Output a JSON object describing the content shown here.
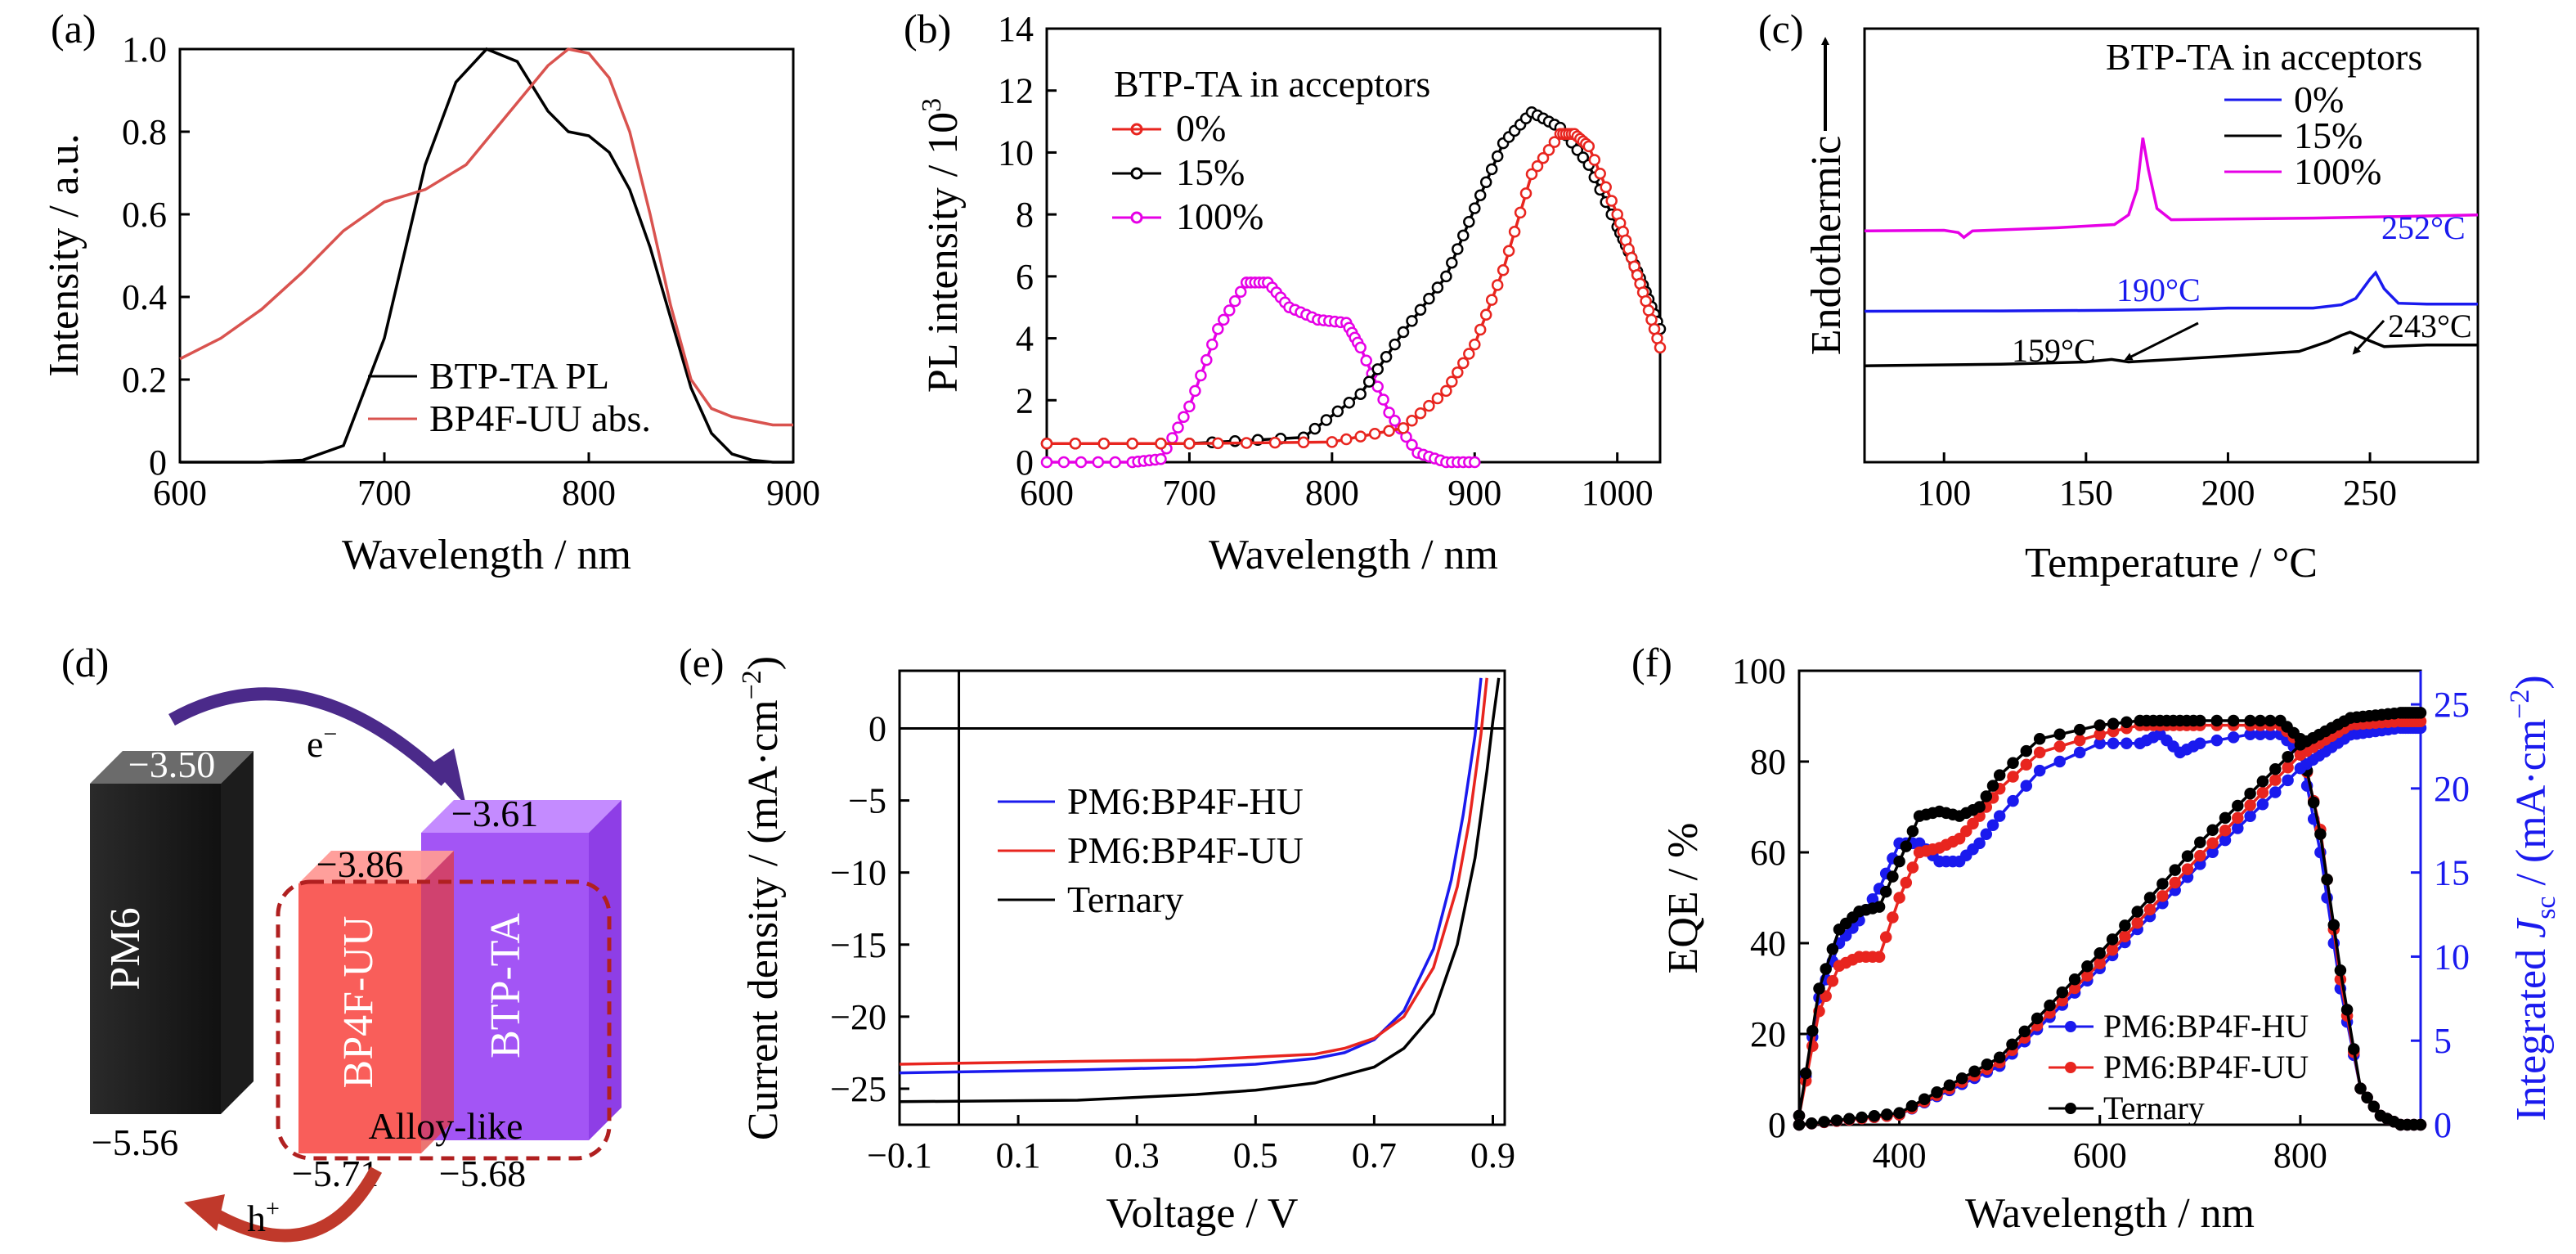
{
  "colors": {
    "black": "#000000",
    "red": "#e8251f",
    "magenta": "#e600e6",
    "blue": "#1a1aee",
    "lightred": "#d9534f",
    "blueaxis": "#1a1aee"
  },
  "panels": {
    "a": {
      "label": "(a)",
      "xlabel": "Wavelength / nm",
      "ylabel": "Intensity / a.u."
    },
    "b": {
      "label": "(b)",
      "xlabel": "Wavelength / nm",
      "ylabel": "PL intensity / 10",
      "ylabel_sup": "3",
      "legend_title": "BTP-TA in acceptors"
    },
    "c": {
      "label": "(c)",
      "xlabel": "Temperature / °C",
      "ylabel": "Endothermic",
      "legend_title": "BTP-TA in acceptors",
      "annotations": [
        "252°C",
        "190°C",
        "243°C",
        "159°C"
      ]
    },
    "d": {
      "label": "(d)",
      "pm6": "PM6",
      "bp4f": "BP4F-UU",
      "btp": "BTP-TA",
      "alloy": "Alloy-like",
      "electron": "e",
      "electron_sup": "−",
      "hole": "h",
      "hole_sup": "+",
      "levels": {
        "pm6_lumo": "−3.50",
        "pm6_homo": "−5.56",
        "bp4f_lumo": "−3.86",
        "bp4f_homo": "−5.71",
        "btp_lumo": "−3.61",
        "btp_homo": "−5.68"
      }
    },
    "e": {
      "label": "(e)",
      "xlabel": "Voltage / V",
      "ylabel": "Current density / (mA·cm",
      "ylabel_sup": "−2",
      "ylabel_end": ")"
    },
    "f": {
      "label": "(f)",
      "xlabel": "Wavelength / nm",
      "ylabel": "EQE / %",
      "ylabel2_pre": "Integrated ",
      "ylabel2_j": "J",
      "ylabel2_sub": "sc",
      "ylabel2_post": " / (mA·cm",
      "ylabel2_sup": "−2",
      "ylabel2_end": ")"
    }
  },
  "chart_data": [
    {
      "id": "a",
      "type": "line",
      "xlim": [
        600,
        900
      ],
      "ylim": [
        0,
        1.0
      ],
      "xticks": [
        "600",
        "700",
        "800",
        "900"
      ],
      "yticks": [
        "0",
        "0.2",
        "0.4",
        "0.6",
        "0.8",
        "1.0"
      ],
      "series": [
        {
          "name": "BTP-TA PL",
          "color": "#000000",
          "x": [
            600,
            640,
            660,
            680,
            700,
            720,
            735,
            750,
            765,
            780,
            790,
            800,
            810,
            820,
            830,
            840,
            850,
            860,
            870,
            880,
            890,
            900
          ],
          "y": [
            0,
            0,
            0.005,
            0.04,
            0.3,
            0.72,
            0.92,
            1.0,
            0.97,
            0.85,
            0.8,
            0.79,
            0.75,
            0.66,
            0.52,
            0.35,
            0.18,
            0.07,
            0.02,
            0.005,
            0,
            0
          ]
        },
        {
          "name": "BP4F-UU abs.",
          "color": "#d9534f",
          "x": [
            600,
            620,
            640,
            660,
            680,
            700,
            720,
            740,
            760,
            780,
            790,
            800,
            810,
            820,
            830,
            840,
            850,
            860,
            870,
            880,
            890,
            900
          ],
          "y": [
            0.25,
            0.3,
            0.37,
            0.46,
            0.56,
            0.63,
            0.66,
            0.72,
            0.84,
            0.96,
            1.0,
            0.99,
            0.93,
            0.8,
            0.6,
            0.38,
            0.2,
            0.13,
            0.11,
            0.1,
            0.09,
            0.09
          ]
        }
      ]
    },
    {
      "id": "b",
      "type": "line",
      "xlim": [
        600,
        1030
      ],
      "ylim": [
        0,
        14
      ],
      "xticks": [
        "600",
        "700",
        "800",
        "900",
        "1000"
      ],
      "yticks": [
        "0",
        "2",
        "4",
        "6",
        "8",
        "10",
        "12",
        "14"
      ],
      "series": [
        {
          "name": "0%",
          "color": "#e8251f",
          "x": [
            600,
            700,
            800,
            850,
            880,
            900,
            920,
            940,
            960,
            970,
            980,
            1000,
            1010,
            1020,
            1030
          ],
          "y": [
            0.6,
            0.6,
            0.65,
            1.1,
            2.3,
            3.8,
            6.2,
            9.3,
            10.6,
            10.6,
            10.2,
            8.0,
            6.6,
            5.2,
            3.7
          ]
        },
        {
          "name": "15%",
          "color": "#000000",
          "x": [
            600,
            700,
            780,
            820,
            850,
            880,
            900,
            920,
            940,
            960,
            980,
            1000,
            1010,
            1020,
            1030
          ],
          "y": [
            0.6,
            0.6,
            0.8,
            2.2,
            4.2,
            6.0,
            8.2,
            10.3,
            11.3,
            10.8,
            9.6,
            7.6,
            6.6,
            5.5,
            4.3
          ]
        },
        {
          "name": "100%",
          "color": "#e600e6",
          "x": [
            600,
            660,
            680,
            700,
            720,
            740,
            755,
            770,
            790,
            810,
            820,
            840,
            860,
            880,
            900
          ],
          "y": [
            0,
            0,
            0.1,
            1.8,
            4.3,
            5.8,
            5.8,
            5.0,
            4.6,
            4.5,
            3.7,
            1.6,
            0.3,
            0,
            0
          ]
        }
      ]
    },
    {
      "id": "c",
      "type": "line",
      "xlim": [
        72,
        288
      ],
      "xticks": [
        "100",
        "150",
        "200",
        "250"
      ],
      "series": [
        {
          "name": "0%",
          "color": "#1a1aee",
          "x": [
            72,
            120,
            160,
            190,
            200,
            230,
            240,
            245,
            250,
            252,
            255,
            260,
            270,
            288
          ],
          "y": [
            0.2,
            0.21,
            0.23,
            0.27,
            0.3,
            0.3,
            0.4,
            0.6,
            1.2,
            1.4,
            0.9,
            0.45,
            0.42,
            0.42
          ]
        },
        {
          "name": "15%",
          "color": "#000000",
          "x": [
            72,
            120,
            150,
            159,
            165,
            200,
            225,
            235,
            240,
            243,
            248,
            255,
            270,
            288
          ],
          "y": [
            -1.5,
            -1.45,
            -1.38,
            -1.3,
            -1.38,
            -1.2,
            -1.05,
            -0.75,
            -0.55,
            -0.45,
            -0.65,
            -0.9,
            -0.85,
            -0.85
          ]
        },
        {
          "name": "100%",
          "color": "#e600e6",
          "x": [
            72,
            100,
            105,
            107,
            110,
            140,
            160,
            165,
            168,
            170,
            172,
            175,
            180,
            200,
            230,
            260,
            288
          ],
          "y": [
            2.7,
            2.72,
            2.65,
            2.5,
            2.7,
            2.8,
            2.9,
            3.2,
            4.0,
            5.6,
            4.6,
            3.4,
            3.05,
            3.07,
            3.1,
            3.15,
            3.2
          ]
        }
      ]
    },
    {
      "id": "e",
      "type": "line",
      "xlim": [
        -0.1,
        0.92
      ],
      "ylim": [
        -27.5,
        4
      ],
      "xticks": [
        "−0.1",
        "0.1",
        "0.3",
        "0.5",
        "0.7",
        "0.9"
      ],
      "yticks": [
        "0",
        "−5",
        "−10",
        "−15",
        "−20",
        "−25"
      ],
      "series": [
        {
          "name": "PM6:BP4F-HU",
          "color": "#1a1aee",
          "x": [
            -0.1,
            0.2,
            0.4,
            0.5,
            0.6,
            0.65,
            0.7,
            0.75,
            0.8,
            0.83,
            0.85,
            0.87,
            0.88
          ],
          "y": [
            -23.9,
            -23.7,
            -23.5,
            -23.3,
            -22.9,
            -22.5,
            -21.6,
            -19.6,
            -15.3,
            -10.5,
            -6.0,
            -0.5,
            3.5
          ]
        },
        {
          "name": "PM6:BP4F-UU",
          "color": "#e8251f",
          "x": [
            -0.1,
            0.2,
            0.4,
            0.5,
            0.6,
            0.65,
            0.7,
            0.75,
            0.8,
            0.84,
            0.86,
            0.88,
            0.89
          ],
          "y": [
            -23.3,
            -23.1,
            -23.0,
            -22.8,
            -22.6,
            -22.2,
            -21.5,
            -20.0,
            -16.6,
            -11.0,
            -6.5,
            -0.4,
            3.5
          ]
        },
        {
          "name": "Ternary",
          "color": "#000000",
          "x": [
            -0.1,
            0.2,
            0.4,
            0.5,
            0.6,
            0.7,
            0.75,
            0.8,
            0.84,
            0.87,
            0.89,
            0.9,
            0.91
          ],
          "y": [
            -25.9,
            -25.8,
            -25.4,
            -25.1,
            -24.6,
            -23.5,
            -22.2,
            -19.8,
            -15.0,
            -9.0,
            -3.0,
            0.5,
            3.5
          ]
        }
      ]
    },
    {
      "id": "f",
      "type": "line",
      "xlim": [
        300,
        920
      ],
      "ylim": [
        0,
        100
      ],
      "y2lim": [
        0,
        27
      ],
      "xticks": [
        "400",
        "600",
        "800"
      ],
      "yticks": [
        "0",
        "20",
        "40",
        "60",
        "80",
        "100"
      ],
      "y2ticks": [
        "0",
        "5",
        "10",
        "15",
        "20",
        "25"
      ],
      "series": [
        {
          "name": "PM6:BP4F-HU",
          "axis": "left",
          "color": "#1a1aee",
          "x": [
            300,
            320,
            340,
            360,
            380,
            400,
            420,
            440,
            460,
            480,
            500,
            540,
            600,
            640,
            660,
            680,
            700,
            750,
            780,
            800,
            820,
            840,
            860,
            880,
            900,
            920
          ],
          "y": [
            2,
            28,
            40,
            45,
            52,
            62,
            62,
            58,
            58,
            62,
            68,
            78,
            84,
            84,
            86,
            82,
            84,
            86,
            86,
            82,
            60,
            30,
            8,
            2,
            0,
            0
          ]
        },
        {
          "name": "PM6:BP4F-UU",
          "axis": "left",
          "color": "#e8251f",
          "x": [
            300,
            320,
            340,
            360,
            380,
            400,
            420,
            440,
            460,
            480,
            500,
            540,
            600,
            640,
            660,
            680,
            700,
            750,
            780,
            800,
            820,
            840,
            860,
            880,
            900,
            920
          ],
          "y": [
            2,
            25,
            35,
            37,
            37,
            50,
            60,
            61,
            63,
            68,
            74,
            82,
            86,
            88,
            88,
            88,
            88,
            88,
            88,
            84,
            65,
            32,
            8,
            2,
            0,
            0
          ]
        },
        {
          "name": "Ternary",
          "axis": "left",
          "color": "#000000",
          "x": [
            300,
            320,
            340,
            360,
            380,
            400,
            420,
            440,
            460,
            480,
            500,
            540,
            600,
            640,
            660,
            680,
            700,
            750,
            780,
            800,
            820,
            840,
            860,
            880,
            900,
            920
          ],
          "y": [
            2,
            30,
            43,
            47,
            48,
            58,
            68,
            69,
            68,
            70,
            77,
            85,
            88,
            89,
            89,
            89,
            89,
            89,
            89,
            85,
            64,
            34,
            8,
            2,
            0,
            0
          ]
        },
        {
          "name": "PM6:BP4F-HU Jsc",
          "axis": "right",
          "color": "#1a1aee",
          "x": [
            300,
            400,
            500,
            600,
            700,
            800,
            850,
            900,
            920
          ],
          "y": [
            0,
            0.6,
            3.5,
            9.3,
            15.5,
            21.2,
            23.2,
            23.6,
            23.6
          ]
        },
        {
          "name": "PM6:BP4F-UU Jsc",
          "axis": "right",
          "color": "#e8251f",
          "x": [
            300,
            400,
            500,
            600,
            700,
            800,
            850,
            900,
            920
          ],
          "y": [
            0,
            0.6,
            3.7,
            9.6,
            16.0,
            22.0,
            23.8,
            24.0,
            24.0
          ]
        },
        {
          "name": "Ternary Jsc",
          "axis": "right",
          "color": "#000000",
          "x": [
            300,
            400,
            500,
            600,
            700,
            800,
            850,
            900,
            920
          ],
          "y": [
            0,
            0.7,
            4.0,
            10.2,
            16.8,
            22.6,
            24.2,
            24.5,
            24.5
          ]
        }
      ]
    }
  ]
}
